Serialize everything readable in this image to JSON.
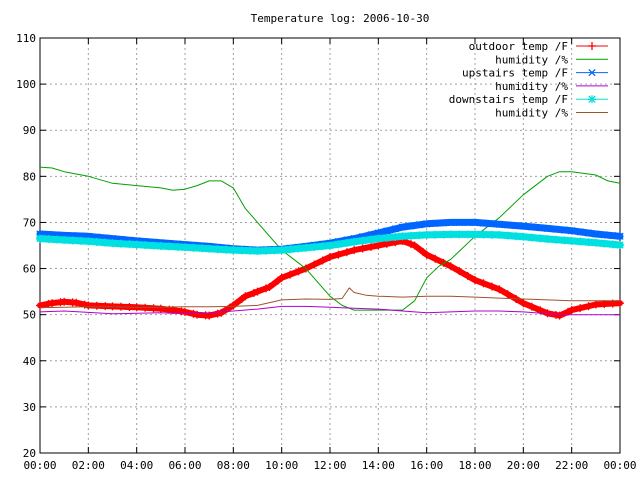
{
  "chart_data": {
    "type": "line",
    "title": "Temperature log: 2006-10-30",
    "xlabel": "",
    "ylabel": "",
    "x_range_hours": [
      0,
      24
    ],
    "ylim": [
      20,
      110
    ],
    "x_ticks": [
      "00:00",
      "02:00",
      "04:00",
      "06:00",
      "08:00",
      "10:00",
      "12:00",
      "14:00",
      "16:00",
      "18:00",
      "20:00",
      "22:00",
      "00:00"
    ],
    "y_ticks": [
      "20",
      "30",
      "40",
      "50",
      "60",
      "70",
      "80",
      "90",
      "100",
      "110"
    ],
    "grid": true,
    "legend_position": "top-right",
    "series": [
      {
        "name": "outdoor temp /F",
        "color": "#ff0000",
        "marker": "plus",
        "x_hours": [
          0,
          0.5,
          1,
          1.5,
          2,
          3,
          4,
          5,
          5.5,
          6,
          6.5,
          7,
          7.5,
          8,
          8.5,
          9,
          9.5,
          10,
          11,
          12,
          13,
          14,
          15,
          15.5,
          16,
          17,
          18,
          19,
          20,
          21,
          21.5,
          22,
          23,
          24
        ],
        "values": [
          52,
          52.5,
          52.8,
          52.6,
          52,
          51.8,
          51.6,
          51.3,
          51,
          50.6,
          50,
          49.8,
          50.4,
          52,
          54,
          55,
          56,
          58,
          60,
          62.5,
          64,
          65,
          66,
          65,
          63,
          60.5,
          57.5,
          55.5,
          52.5,
          50.3,
          49.8,
          51,
          52.2,
          52.5
        ]
      },
      {
        "name": "humidity /%",
        "color": "#00a000",
        "marker": "none",
        "x_hours": [
          0,
          0.5,
          1,
          2,
          3,
          4,
          5,
          5.5,
          6,
          6.5,
          7,
          7.5,
          8,
          8.5,
          9,
          9.5,
          10,
          10.5,
          11,
          11.5,
          12,
          12.5,
          13,
          14,
          15,
          15.5,
          16,
          16.5,
          17,
          18,
          19,
          20,
          21,
          21.5,
          22,
          23,
          23.5,
          24
        ],
        "values": [
          82,
          81.8,
          81,
          80,
          78.5,
          78,
          77.5,
          77,
          77.2,
          78,
          79,
          79,
          77.5,
          73,
          70,
          67,
          64,
          62,
          60,
          57,
          54,
          52,
          51,
          51,
          51,
          53,
          58,
          60.5,
          62,
          67,
          71,
          76,
          80,
          81,
          81,
          80.3,
          79,
          78.5
        ]
      },
      {
        "name": "upstairs temp /F",
        "color": "#0066ff",
        "marker": "x",
        "x_hours": [
          0,
          1,
          2,
          3,
          4,
          5,
          6,
          7,
          8,
          9,
          10,
          11,
          12,
          13,
          14,
          15,
          16,
          17,
          18,
          19,
          20,
          21,
          22,
          23,
          24
        ],
        "values": [
          67.5,
          67.2,
          67,
          66.5,
          66,
          65.6,
          65.2,
          64.8,
          64.3,
          64,
          64.2,
          64.8,
          65.5,
          66.5,
          67.7,
          69,
          69.7,
          70,
          70,
          69.6,
          69.2,
          68.7,
          68.2,
          67.5,
          67
        ]
      },
      {
        "name": "humidity /%",
        "color": "#b000d0",
        "marker": "none",
        "x_hours": [
          0,
          1,
          2,
          3,
          4,
          5,
          6,
          7,
          8,
          9,
          10,
          11,
          12,
          13,
          14,
          15,
          16,
          17,
          18,
          19,
          20,
          21,
          22,
          23,
          24
        ],
        "values": [
          50.6,
          50.8,
          50.5,
          50.2,
          50.3,
          50.4,
          50.2,
          50.4,
          50.8,
          51.2,
          51.8,
          51.8,
          51.6,
          51.4,
          51.2,
          50.8,
          50.4,
          50.6,
          50.8,
          50.8,
          50.6,
          50.2,
          50,
          50,
          50
        ]
      },
      {
        "name": "downstairs temp /F",
        "color": "#00e0e0",
        "marker": "star",
        "x_hours": [
          0,
          1,
          2,
          3,
          4,
          5,
          6,
          7,
          8,
          9,
          10,
          11,
          12,
          13,
          14,
          15,
          16,
          17,
          18,
          19,
          20,
          21,
          22,
          23,
          24
        ],
        "values": [
          66.5,
          66.2,
          65.9,
          65.5,
          65.2,
          64.9,
          64.6,
          64.3,
          64,
          63.8,
          64,
          64.5,
          65,
          65.8,
          66.5,
          67,
          67.3,
          67.4,
          67.4,
          67.3,
          66.9,
          66.4,
          66,
          65.6,
          65.1
        ]
      },
      {
        "name": "humidity /%",
        "color": "#a0522d",
        "marker": "none",
        "x_hours": [
          0,
          1,
          2,
          3,
          4,
          5,
          6,
          7,
          8,
          9,
          10,
          11,
          12,
          12.5,
          12.8,
          13,
          13.5,
          14,
          15,
          16,
          17,
          18,
          19,
          20,
          21,
          22,
          23,
          24
        ],
        "values": [
          51.5,
          51.6,
          51.7,
          51.7,
          51.6,
          51.6,
          51.7,
          51.7,
          51.8,
          52,
          53.2,
          53.4,
          53.3,
          53.5,
          55.8,
          54.8,
          54.2,
          54,
          53.8,
          54,
          54,
          53.8,
          53.6,
          53.4,
          53.2,
          53,
          53,
          53
        ]
      }
    ]
  }
}
